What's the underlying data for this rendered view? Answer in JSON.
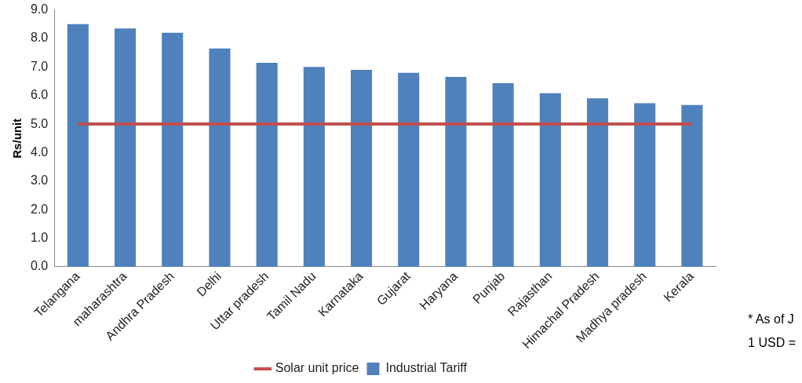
{
  "chart_data": {
    "type": "bar",
    "ylabel": "Rs/unit",
    "categories": [
      "Telangana",
      "maharashtra",
      "Andhra Pradesh",
      "Delhi",
      "Uttar pradesh",
      "Tamil Nadu",
      "Karnataka",
      "Gujarat",
      "Haryana",
      "Punjab",
      "Rajasthan",
      "Himachal Pradesh",
      "Madhya pradesh",
      "Kerala"
    ],
    "series": [
      {
        "name": "Industrial Tariff",
        "color": "#4f81bd",
        "values": [
          8.5,
          8.35,
          8.2,
          7.65,
          7.15,
          7.0,
          6.9,
          6.8,
          6.65,
          6.43,
          6.08,
          5.9,
          5.73,
          5.67
        ]
      },
      {
        "name": "Solar unit price",
        "type": "line",
        "color": "#c0504d",
        "values": [
          5.0,
          5.0,
          5.0,
          5.0,
          5.0,
          5.0,
          5.0,
          5.0,
          5.0,
          5.0,
          5.0,
          5.0,
          5.0,
          5.0
        ]
      }
    ],
    "ylim": [
      0,
      9
    ],
    "yticks": [
      {
        "value": 0,
        "label": "0.0"
      },
      {
        "value": 1,
        "label": "1.0"
      },
      {
        "value": 2,
        "label": "2.0"
      },
      {
        "value": 3,
        "label": "3.0"
      },
      {
        "value": 4,
        "label": "4.0"
      },
      {
        "value": 5,
        "label": "5.0"
      },
      {
        "value": 6,
        "label": "6.0"
      },
      {
        "value": 7,
        "label": "7.0"
      },
      {
        "value": 8,
        "label": "8.0"
      },
      {
        "value": 9,
        "label": "9.0"
      }
    ],
    "grid": false,
    "legend": "bottom",
    "annotations": [
      "* As of J",
      "1 USD ="
    ]
  }
}
